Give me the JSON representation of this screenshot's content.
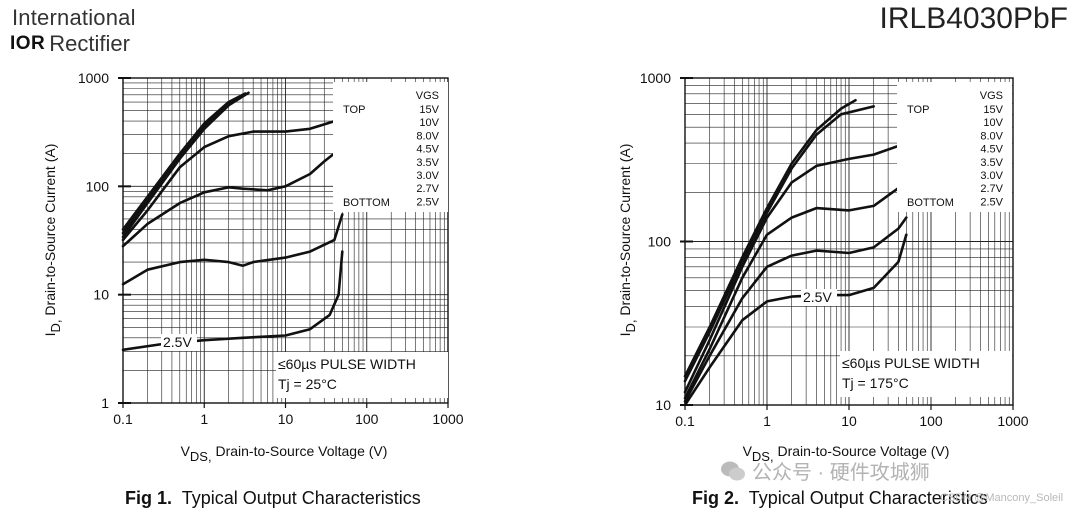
{
  "header": {
    "brand_line1": "International",
    "brand_logo": "IOR",
    "brand_line2": "Rectifier",
    "part_number": "IRLB4030PbF"
  },
  "watermark": {
    "text": "公众号 · 硬件攻城狮",
    "small": "CSDN @Mancony_Soleil",
    "icon": "wechat-icon"
  },
  "chart_data": [
    {
      "type": "line",
      "id": "fig1",
      "caption_bold": "Fig 1.",
      "caption": "Typical Output Characteristics",
      "xscale": "log",
      "yscale": "log",
      "xlim": [
        0.1,
        1000
      ],
      "ylim": [
        1,
        1000
      ],
      "xticks": [
        "0.1",
        "1",
        "10",
        "100",
        "1000"
      ],
      "yticks": [
        "1",
        "10",
        "100",
        "1000"
      ],
      "xlabel_main": "V",
      "xlabel_sub": "DS,",
      "xlabel_rest": " Drain-to-Source Voltage (V)",
      "ylabel_main": "I",
      "ylabel_sub": "D,",
      "ylabel_rest": " Drain-to-Source Current (A)",
      "legend_title": "VGS",
      "legend_top": "TOP",
      "legend_bottom": "BOTTOM",
      "legend_entries": [
        "15V",
        "10V",
        "8.0V",
        "4.5V",
        "3.5V",
        "3.0V",
        "2.7V",
        "2.5V"
      ],
      "legend_position": "top-right",
      "annotation_pulse": "≤60µs PULSE WIDTH",
      "annotation_temp": "Tj = 25°C",
      "curve_label": "2.5V",
      "series": [
        {
          "name": "15V",
          "points": [
            [
              0.1,
              40
            ],
            [
              0.2,
              80
            ],
            [
              0.5,
              200
            ],
            [
              1,
              380
            ],
            [
              2,
              600
            ],
            [
              3.2,
              720
            ]
          ]
        },
        {
          "name": "10V",
          "points": [
            [
              0.1,
              37
            ],
            [
              0.2,
              75
            ],
            [
              0.5,
              190
            ],
            [
              1,
              360
            ],
            [
              2,
              580
            ],
            [
              3,
              700
            ]
          ]
        },
        {
          "name": "8.0V",
          "points": [
            [
              0.1,
              34
            ],
            [
              0.2,
              70
            ],
            [
              0.5,
              180
            ],
            [
              1,
              340
            ],
            [
              2,
              560
            ],
            [
              3.5,
              730
            ]
          ]
        },
        {
          "name": "4.5V",
          "points": [
            [
              0.1,
              32
            ],
            [
              0.2,
              60
            ],
            [
              0.5,
              150
            ],
            [
              1,
              230
            ],
            [
              2,
              290
            ],
            [
              4,
              320
            ],
            [
              10,
              320
            ],
            [
              20,
              340
            ],
            [
              50,
              420
            ]
          ]
        },
        {
          "name": "3.5V",
          "points": [
            [
              0.1,
              28
            ],
            [
              0.2,
              45
            ],
            [
              0.5,
              70
            ],
            [
              1,
              88
            ],
            [
              2,
              98
            ],
            [
              3,
              95
            ],
            [
              6,
              92
            ],
            [
              10,
              100
            ],
            [
              20,
              130
            ],
            [
              30,
              170
            ],
            [
              50,
              230
            ]
          ]
        },
        {
          "name": "3.0V",
          "points": [
            [
              0.1,
              12.5
            ],
            [
              0.2,
              17
            ],
            [
              0.5,
              20
            ],
            [
              1,
              21
            ],
            [
              2,
              20
            ],
            [
              3,
              18.5
            ],
            [
              4,
              20
            ],
            [
              10,
              22
            ],
            [
              20,
              25
            ],
            [
              40,
              32
            ],
            [
              50,
              55
            ]
          ]
        },
        {
          "name": "2.5V",
          "points": [
            [
              0.1,
              3.1
            ],
            [
              0.3,
              3.5
            ],
            [
              1,
              3.8
            ],
            [
              3,
              4.0
            ],
            [
              10,
              4.2
            ],
            [
              20,
              4.8
            ],
            [
              35,
              6.5
            ],
            [
              45,
              10
            ],
            [
              50,
              25
            ]
          ]
        }
      ]
    },
    {
      "type": "line",
      "id": "fig2",
      "caption_bold": "Fig 2.",
      "caption": "Typical Output Characteristics",
      "xscale": "log",
      "yscale": "log",
      "xlim": [
        0.1,
        1000
      ],
      "ylim": [
        10,
        1000
      ],
      "xticks": [
        "0.1",
        "1",
        "10",
        "100",
        "1000"
      ],
      "yticks": [
        "10",
        "100",
        "1000"
      ],
      "xlabel_main": "V",
      "xlabel_sub": "DS,",
      "xlabel_rest": " Drain-to-Source Voltage (V)",
      "ylabel_main": "I",
      "ylabel_sub": "D,",
      "ylabel_rest": " Drain-to-Source Current (A)",
      "legend_title": "VGS",
      "legend_top": "TOP",
      "legend_bottom": "BOTTOM",
      "legend_entries": [
        "15V",
        "10V",
        "8.0V",
        "4.5V",
        "3.5V",
        "3.0V",
        "2.7V",
        "2.5V"
      ],
      "legend_position": "top-right",
      "annotation_pulse": "≤60µs PULSE WIDTH",
      "annotation_temp": "Tj = 175°C",
      "curve_label": "2.5V",
      "series": [
        {
          "name": "15V",
          "points": [
            [
              0.1,
              15
            ],
            [
              0.2,
              30
            ],
            [
              0.5,
              80
            ],
            [
              1,
              160
            ],
            [
              2,
              300
            ],
            [
              4,
              480
            ],
            [
              8,
              650
            ],
            [
              12,
              730
            ]
          ]
        },
        {
          "name": "10V",
          "points": [
            [
              0.1,
              14
            ],
            [
              0.2,
              28
            ],
            [
              0.5,
              75
            ],
            [
              1,
              150
            ],
            [
              2,
              280
            ],
            [
              4,
              450
            ],
            [
              8,
              600
            ],
            [
              20,
              670
            ]
          ]
        },
        {
          "name": "4.5V",
          "points": [
            [
              0.1,
              12
            ],
            [
              0.2,
              25
            ],
            [
              0.5,
              70
            ],
            [
              1,
              140
            ],
            [
              2,
              230
            ],
            [
              4,
              290
            ],
            [
              10,
              320
            ],
            [
              20,
              340
            ],
            [
              50,
              400
            ]
          ]
        },
        {
          "name": "3.5V",
          "points": [
            [
              0.1,
              11
            ],
            [
              0.2,
              22
            ],
            [
              0.5,
              60
            ],
            [
              1,
              110
            ],
            [
              2,
              140
            ],
            [
              4,
              160
            ],
            [
              10,
              155
            ],
            [
              20,
              165
            ],
            [
              50,
              230
            ]
          ]
        },
        {
          "name": "3.0V",
          "points": [
            [
              0.1,
              10.5
            ],
            [
              0.2,
              20
            ],
            [
              0.5,
              45
            ],
            [
              1,
              70
            ],
            [
              2,
              82
            ],
            [
              4,
              88
            ],
            [
              10,
              85
            ],
            [
              20,
              92
            ],
            [
              40,
              120
            ],
            [
              50,
              140
            ]
          ]
        },
        {
          "name": "2.5V",
          "points": [
            [
              0.1,
              10
            ],
            [
              0.2,
              17
            ],
            [
              0.5,
              33
            ],
            [
              1,
              43
            ],
            [
              2,
              46
            ],
            [
              5,
              47
            ],
            [
              10,
              47
            ],
            [
              20,
              52
            ],
            [
              40,
              75
            ],
            [
              50,
              110
            ]
          ]
        }
      ]
    }
  ]
}
